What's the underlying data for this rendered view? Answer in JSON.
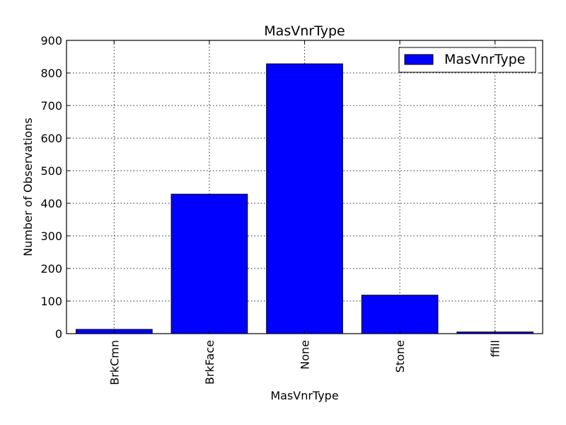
{
  "chart_data": {
    "type": "bar",
    "title": "MasVnrType",
    "xlabel": "MasVnrType",
    "ylabel": "Number of Observations",
    "categories": [
      "BrkCmn",
      "BrkFace",
      "None",
      "Stone",
      "ffill"
    ],
    "series": [
      {
        "name": "MasVnrType",
        "values": [
          13,
          428,
          828,
          118,
          5
        ],
        "color": "#0000ff"
      }
    ],
    "ylim": [
      0,
      900
    ],
    "yticks": [
      0,
      100,
      200,
      300,
      400,
      500,
      600,
      700,
      800,
      900
    ],
    "grid": true,
    "legend_position": "top-right"
  }
}
